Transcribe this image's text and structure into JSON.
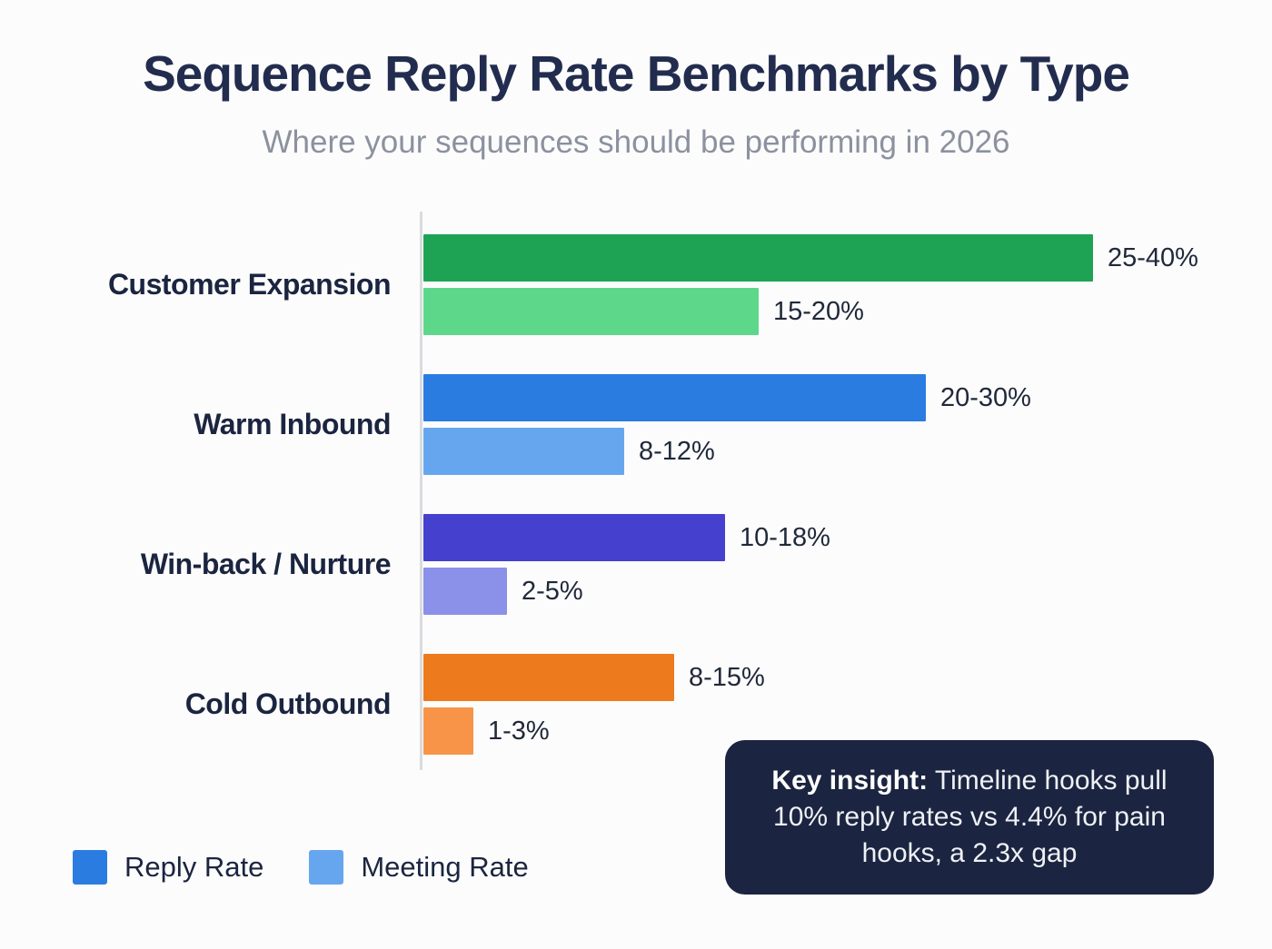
{
  "title": "Sequence Reply Rate Benchmarks by Type",
  "subtitle": "Where your sequences should be performing in 2026",
  "chart_data": {
    "type": "bar",
    "orientation": "horizontal",
    "title": "Sequence Reply Rate Benchmarks by Type",
    "subtitle": "Where your sequences should be performing in 2026",
    "categories": [
      "Customer Expansion",
      "Warm Inbound",
      "Win-back / Nurture",
      "Cold Outbound"
    ],
    "series": [
      {
        "name": "Reply Rate",
        "labels": [
          "25-40%",
          "20-30%",
          "10-18%",
          "8-15%"
        ],
        "ranges_pct": [
          [
            25,
            40
          ],
          [
            20,
            30
          ],
          [
            10,
            18
          ],
          [
            8,
            15
          ]
        ],
        "upper_values": [
          40,
          30,
          18,
          15
        ],
        "colors": [
          "#1ea254",
          "#2b7ce0",
          "#4540cd",
          "#ee7a1e"
        ]
      },
      {
        "name": "Meeting Rate",
        "labels": [
          "15-20%",
          "8-12%",
          "2-5%",
          "1-3%"
        ],
        "ranges_pct": [
          [
            15,
            20
          ],
          [
            8,
            12
          ],
          [
            2,
            5
          ],
          [
            1,
            3
          ]
        ],
        "upper_values": [
          20,
          12,
          5,
          3
        ],
        "colors": [
          "#5dd88b",
          "#66a6ef",
          "#8b90e9",
          "#f79447"
        ]
      }
    ],
    "xlim": [
      0,
      40
    ],
    "grid": false,
    "legend_position": "bottom-left"
  },
  "legend": [
    {
      "label": "Reply Rate",
      "color": "#2b7ce0"
    },
    {
      "label": "Meeting Rate",
      "color": "#66a6ef"
    }
  ],
  "key_insight": {
    "lead": "Key insight:",
    "rest": " Timeline hooks pull 10% reply rates vs 4.4% for pain hooks, a 2.3x gap"
  },
  "colors": {
    "background": "#fcfcfc",
    "title_text": "#222c4e",
    "subtitle_text": "#8b919f",
    "axis_line": "#d9dbde",
    "insight_box": "#1b2440",
    "insight_text": "#eef1f5"
  }
}
